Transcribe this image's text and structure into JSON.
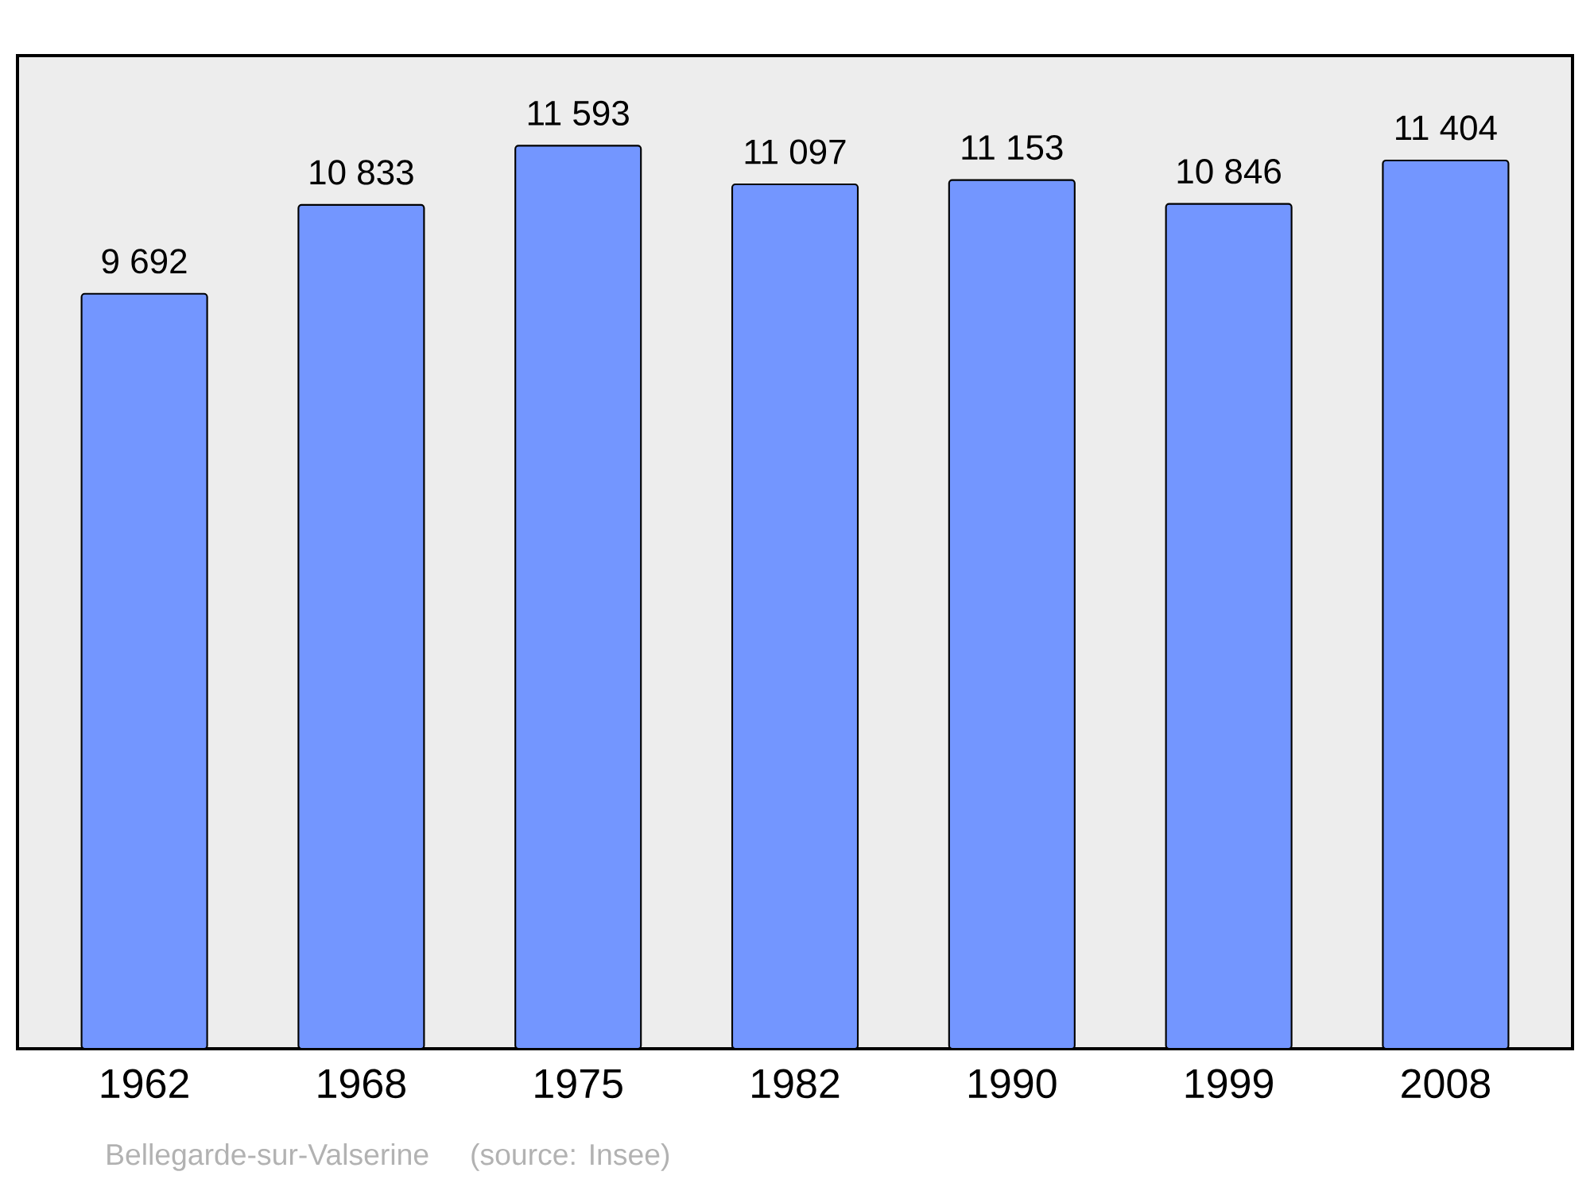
{
  "chart_data": {
    "type": "bar",
    "categories": [
      "1962",
      "1968",
      "1975",
      "1982",
      "1990",
      "1999",
      "2008"
    ],
    "values": [
      9692,
      10833,
      11593,
      11097,
      11153,
      10846,
      11404
    ],
    "value_labels": [
      "9 692",
      "10 833",
      "11 593",
      "11 097",
      "11 153",
      "10 846",
      "11 404"
    ],
    "color": "#7396ff",
    "ylim": [
      0,
      12750
    ],
    "annotations": [
      "Bellegarde-sur-Valserine",
      "(source: Insee)"
    ]
  }
}
